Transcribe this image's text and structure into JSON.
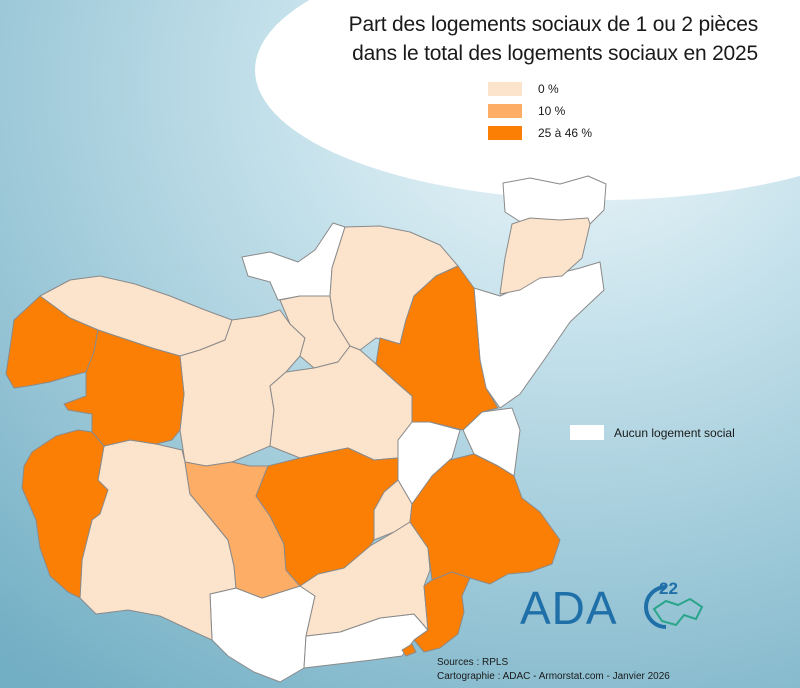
{
  "title_line1": "Part des logements sociaux de 1 ou 2 pièces",
  "title_line2": "dans le total des logements sociaux en 2025",
  "legend": [
    {
      "label": "0 %",
      "color": "#fce4cc"
    },
    {
      "label": "10 %",
      "color": "#fdad66"
    },
    {
      "label": "25 à 46 %",
      "color": "#fc7f05"
    }
  ],
  "no_social_label": "Aucun logement social",
  "sources": "Sources : RPLS",
  "credit": "Cartographie : ADAC - Armorstat.com - Janvier 2026",
  "logo": {
    "text": "ADA",
    "number": "22",
    "color": "#1f6fa8",
    "accent": "#2aa58a"
  },
  "colors": {
    "ocean_light": "#d8ecf3",
    "ocean_dark": "#7fb8cc",
    "no_data": "#ffffff",
    "border": "#8a8a8a"
  }
}
